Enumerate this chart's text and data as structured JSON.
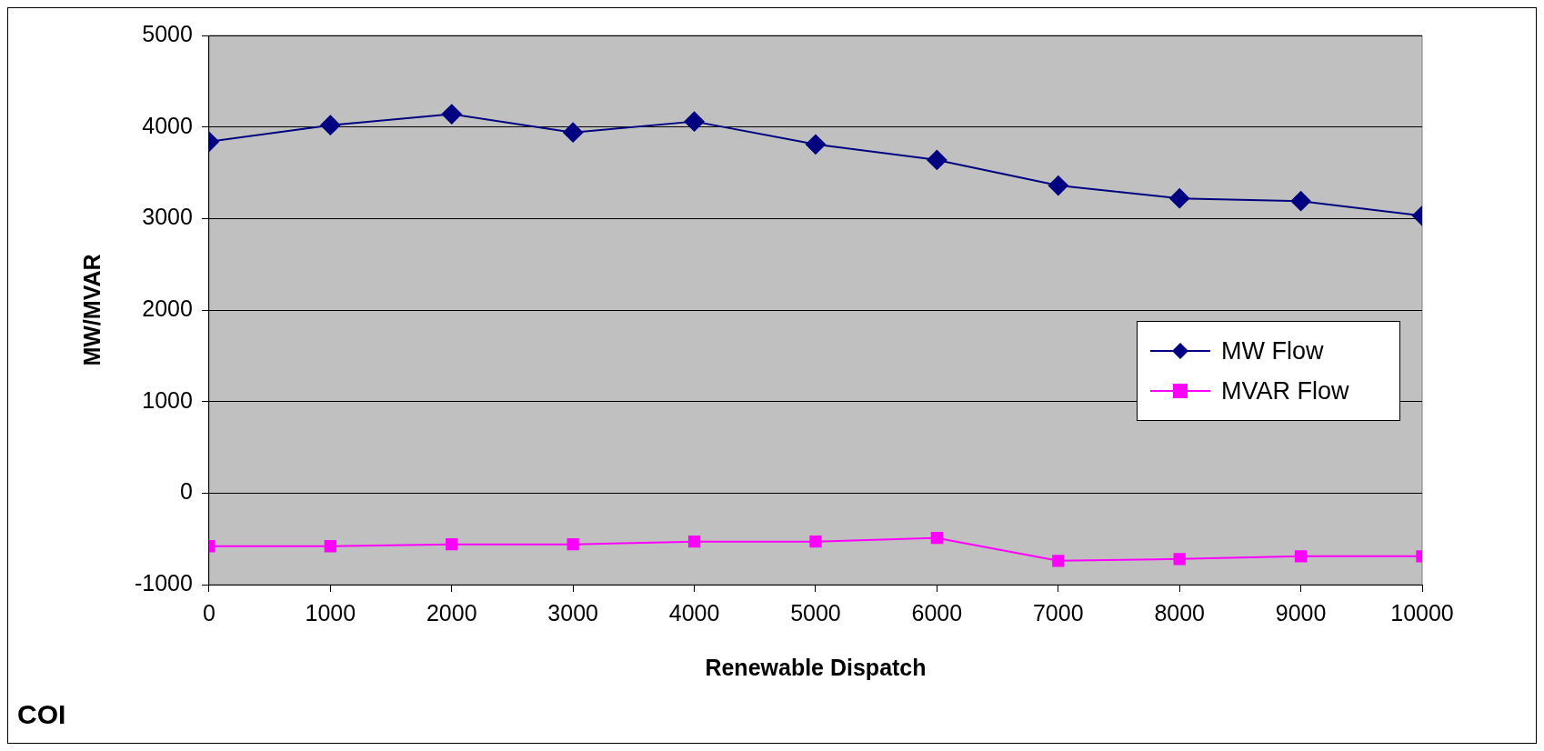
{
  "chart_data": {
    "type": "line",
    "xlabel": "Renewable Dispatch",
    "ylabel": "MW/MVAR",
    "annotations": [
      "COI"
    ],
    "xlim": [
      0,
      10000
    ],
    "xticks": [
      0,
      1000,
      2000,
      3000,
      4000,
      5000,
      6000,
      7000,
      8000,
      9000,
      10000
    ],
    "ylim": [
      -1000,
      5000
    ],
    "yticks": [
      -1000,
      0,
      1000,
      2000,
      3000,
      4000,
      5000
    ],
    "grid": "y",
    "legend": "right",
    "line_style": "solid",
    "series": [
      {
        "name": "MW Flow",
        "color": "#000080",
        "marker": "diamond",
        "x": [
          0,
          1000,
          2000,
          3000,
          4000,
          5000,
          6000,
          7000,
          8000,
          9000,
          10000
        ],
        "values": [
          3840,
          4020,
          4140,
          3940,
          4060,
          3810,
          3640,
          3360,
          3220,
          3190,
          3030
        ]
      },
      {
        "name": "MVAR Flow",
        "color": "#ff00ff",
        "marker": "square",
        "x": [
          0,
          1000,
          2000,
          3000,
          4000,
          5000,
          6000,
          7000,
          8000,
          9000,
          10000
        ],
        "values": [
          -580,
          -580,
          -560,
          -560,
          -530,
          -530,
          -490,
          -740,
          -720,
          -690,
          -690
        ]
      }
    ]
  }
}
